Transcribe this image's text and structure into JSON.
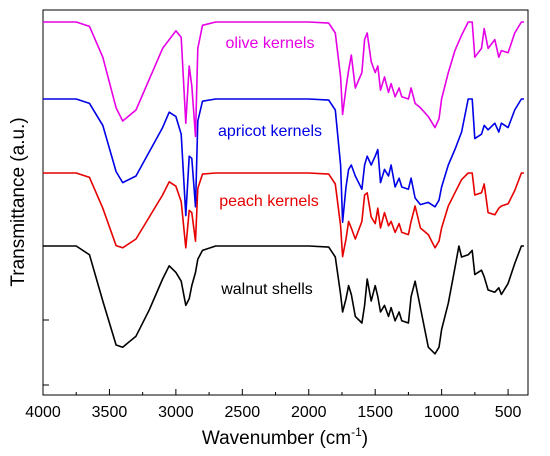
{
  "chart_data": {
    "type": "line",
    "xlabel_main": "Wavenumber (cm",
    "xlabel_sup": "-1",
    "xlabel_end": ")",
    "ylabel": "Transmittance (a.u.)",
    "xlim": [
      4000,
      350
    ],
    "x_ticks": [
      {
        "value": 4000,
        "label": "4000"
      },
      {
        "value": 3500,
        "label": "3500"
      },
      {
        "value": 3000,
        "label": "3000"
      },
      {
        "value": 2500,
        "label": "2500"
      },
      {
        "value": 2000,
        "label": "2000"
      },
      {
        "value": 1500,
        "label": "1500"
      },
      {
        "value": 1000,
        "label": "1000"
      },
      {
        "value": 500,
        "label": "500"
      }
    ],
    "y_ticks_unlabeled": 6,
    "series": [
      {
        "name": "olive kernels",
        "color": "#e600e6",
        "points": [
          [
            4000,
            0.0
          ],
          [
            3750,
            0.0
          ],
          [
            3650,
            0.2
          ],
          [
            3550,
            1.6
          ],
          [
            3450,
            3.9
          ],
          [
            3400,
            4.5
          ],
          [
            3300,
            4.0
          ],
          [
            3200,
            2.6
          ],
          [
            3100,
            1.2
          ],
          [
            3000,
            0.4
          ],
          [
            2960,
            0.7
          ],
          [
            2925,
            4.6
          ],
          [
            2900,
            2.0
          ],
          [
            2880,
            2.9
          ],
          [
            2852,
            5.2
          ],
          [
            2835,
            1.2
          ],
          [
            2800,
            0.15
          ],
          [
            2700,
            0.0
          ],
          [
            2000,
            0.0
          ],
          [
            1850,
            0.05
          ],
          [
            1800,
            0.5
          ],
          [
            1760,
            2.5
          ],
          [
            1745,
            4.2
          ],
          [
            1720,
            3.0
          ],
          [
            1700,
            2.2
          ],
          [
            1680,
            1.5
          ],
          [
            1650,
            3.0
          ],
          [
            1600,
            2.3
          ],
          [
            1580,
            0.8
          ],
          [
            1560,
            0.5
          ],
          [
            1530,
            1.8
          ],
          [
            1500,
            2.3
          ],
          [
            1480,
            2.0
          ],
          [
            1460,
            3.1
          ],
          [
            1430,
            2.5
          ],
          [
            1400,
            3.2
          ],
          [
            1380,
            2.8
          ],
          [
            1350,
            3.4
          ],
          [
            1320,
            3.0
          ],
          [
            1300,
            3.4
          ],
          [
            1250,
            3.5
          ],
          [
            1230,
            3.0
          ],
          [
            1200,
            3.7
          ],
          [
            1160,
            3.9
          ],
          [
            1100,
            4.3
          ],
          [
            1050,
            4.8
          ],
          [
            1020,
            4.4
          ],
          [
            1000,
            3.5
          ],
          [
            950,
            2.3
          ],
          [
            900,
            1.3
          ],
          [
            850,
            0.6
          ],
          [
            800,
            0.0
          ],
          [
            770,
            0.0
          ],
          [
            750,
            1.6
          ],
          [
            700,
            1.2
          ],
          [
            680,
            0.3
          ],
          [
            650,
            1.2
          ],
          [
            600,
            0.8
          ],
          [
            570,
            1.6
          ],
          [
            550,
            1.3
          ],
          [
            500,
            1.4
          ],
          [
            450,
            0.5
          ],
          [
            400,
            0.0
          ],
          [
            380,
            0.0
          ]
        ]
      },
      {
        "name": "apricot kernels",
        "color": "#0000e6",
        "points": [
          [
            4000,
            0.0
          ],
          [
            3750,
            0.0
          ],
          [
            3650,
            0.2
          ],
          [
            3550,
            1.2
          ],
          [
            3450,
            3.3
          ],
          [
            3400,
            3.8
          ],
          [
            3300,
            3.5
          ],
          [
            3200,
            2.4
          ],
          [
            3100,
            1.3
          ],
          [
            3050,
            0.6
          ],
          [
            3000,
            0.8
          ],
          [
            2960,
            1.6
          ],
          [
            2925,
            5.3
          ],
          [
            2900,
            2.6
          ],
          [
            2880,
            2.7
          ],
          [
            2852,
            4.9
          ],
          [
            2835,
            1.0
          ],
          [
            2800,
            0.1
          ],
          [
            2700,
            0.0
          ],
          [
            2000,
            0.0
          ],
          [
            1850,
            0.05
          ],
          [
            1800,
            0.5
          ],
          [
            1760,
            3.0
          ],
          [
            1745,
            5.6
          ],
          [
            1720,
            4.0
          ],
          [
            1700,
            3.2
          ],
          [
            1680,
            3.0
          ],
          [
            1650,
            3.5
          ],
          [
            1600,
            4.1
          ],
          [
            1580,
            3.0
          ],
          [
            1560,
            2.6
          ],
          [
            1530,
            3.0
          ],
          [
            1500,
            2.6
          ],
          [
            1480,
            2.3
          ],
          [
            1460,
            3.8
          ],
          [
            1430,
            3.2
          ],
          [
            1400,
            3.5
          ],
          [
            1380,
            3.0
          ],
          [
            1350,
            4.0
          ],
          [
            1320,
            3.6
          ],
          [
            1300,
            4.0
          ],
          [
            1250,
            4.1
          ],
          [
            1230,
            3.6
          ],
          [
            1200,
            4.5
          ],
          [
            1160,
            4.8
          ],
          [
            1100,
            4.7
          ],
          [
            1050,
            4.9
          ],
          [
            1020,
            4.6
          ],
          [
            1000,
            4.0
          ],
          [
            950,
            3.0
          ],
          [
            900,
            2.3
          ],
          [
            850,
            1.5
          ],
          [
            800,
            0.0
          ],
          [
            770,
            0.0
          ],
          [
            750,
            1.8
          ],
          [
            700,
            1.6
          ],
          [
            680,
            1.2
          ],
          [
            650,
            1.4
          ],
          [
            600,
            1.1
          ],
          [
            570,
            1.5
          ],
          [
            550,
            1.1
          ],
          [
            500,
            1.3
          ],
          [
            450,
            0.5
          ],
          [
            400,
            0.0
          ],
          [
            380,
            0.0
          ]
        ]
      },
      {
        "name": "peach kernels",
        "color": "#e60000",
        "points": [
          [
            4000,
            0.0
          ],
          [
            3750,
            0.0
          ],
          [
            3650,
            0.2
          ],
          [
            3550,
            1.6
          ],
          [
            3450,
            3.3
          ],
          [
            3400,
            3.4
          ],
          [
            3300,
            3.0
          ],
          [
            3200,
            2.0
          ],
          [
            3100,
            1.0
          ],
          [
            3050,
            0.4
          ],
          [
            3000,
            0.6
          ],
          [
            2960,
            1.3
          ],
          [
            2925,
            3.4
          ],
          [
            2900,
            1.7
          ],
          [
            2880,
            1.8
          ],
          [
            2852,
            3.1
          ],
          [
            2835,
            0.7
          ],
          [
            2800,
            0.05
          ],
          [
            2700,
            0.0
          ],
          [
            2000,
            0.0
          ],
          [
            1850,
            0.05
          ],
          [
            1800,
            0.5
          ],
          [
            1760,
            2.4
          ],
          [
            1745,
            3.8
          ],
          [
            1720,
            3.0
          ],
          [
            1700,
            2.2
          ],
          [
            1680,
            2.5
          ],
          [
            1650,
            3.0
          ],
          [
            1600,
            2.2
          ],
          [
            1580,
            1.0
          ],
          [
            1560,
            0.9
          ],
          [
            1530,
            2.0
          ],
          [
            1500,
            2.3
          ],
          [
            1480,
            1.6
          ],
          [
            1460,
            2.5
          ],
          [
            1430,
            1.8
          ],
          [
            1400,
            2.4
          ],
          [
            1380,
            2.2
          ],
          [
            1350,
            2.7
          ],
          [
            1320,
            2.3
          ],
          [
            1300,
            2.7
          ],
          [
            1250,
            2.8
          ],
          [
            1230,
            2.2
          ],
          [
            1200,
            1.5
          ],
          [
            1160,
            2.5
          ],
          [
            1100,
            2.8
          ],
          [
            1050,
            3.4
          ],
          [
            1020,
            3.1
          ],
          [
            1000,
            2.5
          ],
          [
            950,
            1.5
          ],
          [
            900,
            0.9
          ],
          [
            850,
            0.3
          ],
          [
            800,
            0.0
          ],
          [
            770,
            0.0
          ],
          [
            750,
            1.0
          ],
          [
            700,
            0.9
          ],
          [
            680,
            0.5
          ],
          [
            650,
            1.8
          ],
          [
            600,
            1.9
          ],
          [
            570,
            1.6
          ],
          [
            550,
            1.5
          ],
          [
            500,
            1.4
          ],
          [
            450,
            0.8
          ],
          [
            400,
            0.0
          ],
          [
            380,
            0.0
          ]
        ]
      },
      {
        "name": "walnut shells",
        "color": "#000000",
        "points": [
          [
            4000,
            0.0
          ],
          [
            3750,
            0.0
          ],
          [
            3650,
            0.4
          ],
          [
            3550,
            2.5
          ],
          [
            3450,
            4.5
          ],
          [
            3400,
            4.6
          ],
          [
            3300,
            4.1
          ],
          [
            3200,
            2.9
          ],
          [
            3100,
            1.5
          ],
          [
            3050,
            0.9
          ],
          [
            3000,
            1.2
          ],
          [
            2960,
            1.6
          ],
          [
            2925,
            2.7
          ],
          [
            2900,
            2.4
          ],
          [
            2880,
            1.8
          ],
          [
            2852,
            1.2
          ],
          [
            2835,
            0.6
          ],
          [
            2800,
            0.2
          ],
          [
            2700,
            0.0
          ],
          [
            2000,
            0.0
          ],
          [
            1850,
            0.05
          ],
          [
            1800,
            0.5
          ],
          [
            1760,
            2.2
          ],
          [
            1745,
            3.0
          ],
          [
            1720,
            2.4
          ],
          [
            1700,
            1.8
          ],
          [
            1680,
            2.2
          ],
          [
            1650,
            3.2
          ],
          [
            1600,
            3.5
          ],
          [
            1580,
            2.7
          ],
          [
            1560,
            1.5
          ],
          [
            1530,
            2.5
          ],
          [
            1500,
            1.8
          ],
          [
            1480,
            2.3
          ],
          [
            1460,
            3.0
          ],
          [
            1430,
            2.7
          ],
          [
            1400,
            3.2
          ],
          [
            1380,
            2.8
          ],
          [
            1350,
            3.4
          ],
          [
            1320,
            3.0
          ],
          [
            1300,
            3.4
          ],
          [
            1250,
            3.5
          ],
          [
            1230,
            2.3
          ],
          [
            1200,
            1.6
          ],
          [
            1160,
            2.8
          ],
          [
            1100,
            4.6
          ],
          [
            1050,
            4.9
          ],
          [
            1020,
            4.6
          ],
          [
            1000,
            3.8
          ],
          [
            950,
            2.6
          ],
          [
            900,
            1.0
          ],
          [
            870,
            0.0
          ],
          [
            850,
            0.5
          ],
          [
            800,
            0.4
          ],
          [
            770,
            0.2
          ],
          [
            750,
            1.3
          ],
          [
            700,
            1.1
          ],
          [
            680,
            1.4
          ],
          [
            650,
            2.0
          ],
          [
            600,
            2.1
          ],
          [
            570,
            1.9
          ],
          [
            550,
            2.2
          ],
          [
            500,
            1.7
          ],
          [
            450,
            0.8
          ],
          [
            400,
            0.0
          ],
          [
            380,
            0.0
          ]
        ]
      }
    ]
  }
}
